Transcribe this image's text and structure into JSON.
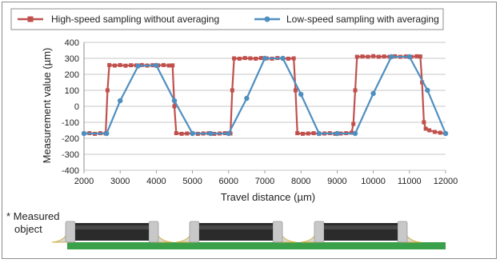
{
  "chart_data": {
    "type": "line",
    "xlabel": "Travel distance (µm)",
    "ylabel": "Measurement value (µm)",
    "xlim": [
      2000,
      12000
    ],
    "ylim": [
      -400,
      400
    ],
    "xticks": [
      2000,
      3000,
      4000,
      5000,
      6000,
      7000,
      8000,
      9000,
      10000,
      11000,
      12000
    ],
    "yticks": [
      -400,
      -300,
      -200,
      -100,
      0,
      100,
      200,
      300,
      400
    ],
    "grid": "horizontal",
    "legend_position": "top",
    "series": [
      {
        "name": "High-speed sampling without averaging",
        "color": "#c0504d",
        "marker": "square",
        "points": [
          [
            2000,
            -170
          ],
          [
            2150,
            -168
          ],
          [
            2300,
            -172
          ],
          [
            2450,
            -168
          ],
          [
            2600,
            -170
          ],
          [
            2650,
            100
          ],
          [
            2700,
            258
          ],
          [
            2850,
            255
          ],
          [
            3000,
            258
          ],
          [
            3150,
            254
          ],
          [
            3300,
            257
          ],
          [
            3450,
            256
          ],
          [
            3600,
            258
          ],
          [
            3750,
            255
          ],
          [
            3900,
            257
          ],
          [
            4050,
            256
          ],
          [
            4200,
            258
          ],
          [
            4350,
            255
          ],
          [
            4450,
            256
          ],
          [
            4500,
            0
          ],
          [
            4550,
            -168
          ],
          [
            4700,
            -172
          ],
          [
            4850,
            -170
          ],
          [
            5000,
            -168
          ],
          [
            5150,
            -172
          ],
          [
            5300,
            -170
          ],
          [
            5450,
            -168
          ],
          [
            5600,
            -172
          ],
          [
            5750,
            -170
          ],
          [
            5900,
            -168
          ],
          [
            6050,
            -170
          ],
          [
            6100,
            100
          ],
          [
            6150,
            300
          ],
          [
            6300,
            298
          ],
          [
            6450,
            302
          ],
          [
            6600,
            300
          ],
          [
            6750,
            298
          ],
          [
            6900,
            302
          ],
          [
            7050,
            300
          ],
          [
            7200,
            298
          ],
          [
            7350,
            302
          ],
          [
            7500,
            300
          ],
          [
            7650,
            298
          ],
          [
            7800,
            300
          ],
          [
            7850,
            100
          ],
          [
            7900,
            -168
          ],
          [
            8050,
            -172
          ],
          [
            8200,
            -170
          ],
          [
            8350,
            -168
          ],
          [
            8500,
            -172
          ],
          [
            8650,
            -170
          ],
          [
            8800,
            -168
          ],
          [
            8950,
            -172
          ],
          [
            9100,
            -170
          ],
          [
            9250,
            -168
          ],
          [
            9400,
            -165
          ],
          [
            9450,
            -110
          ],
          [
            9500,
            100
          ],
          [
            9550,
            310
          ],
          [
            9700,
            312
          ],
          [
            9850,
            310
          ],
          [
            10000,
            314
          ],
          [
            10150,
            310
          ],
          [
            10300,
            312
          ],
          [
            10450,
            310
          ],
          [
            10600,
            313
          ],
          [
            10750,
            310
          ],
          [
            10900,
            312
          ],
          [
            11050,
            310
          ],
          [
            11200,
            313
          ],
          [
            11300,
            312
          ],
          [
            11350,
            150
          ],
          [
            11400,
            -100
          ],
          [
            11450,
            -140
          ],
          [
            11550,
            -150
          ],
          [
            11700,
            -160
          ],
          [
            11850,
            -165
          ],
          [
            12000,
            -170
          ]
        ]
      },
      {
        "name": "Low-speed sampling with averaging",
        "color": "#4f8fc0",
        "marker": "circle",
        "points": [
          [
            2000,
            -170
          ],
          [
            2625,
            -170
          ],
          [
            3000,
            35
          ],
          [
            3500,
            253
          ],
          [
            4000,
            256
          ],
          [
            4500,
            35
          ],
          [
            5000,
            -170
          ],
          [
            5500,
            -170
          ],
          [
            6000,
            -170
          ],
          [
            6500,
            50
          ],
          [
            7000,
            300
          ],
          [
            7500,
            300
          ],
          [
            8000,
            75
          ],
          [
            8500,
            -170
          ],
          [
            9000,
            -170
          ],
          [
            9500,
            -170
          ],
          [
            10000,
            80
          ],
          [
            10500,
            310
          ],
          [
            11000,
            310
          ],
          [
            11500,
            100
          ],
          [
            12000,
            -170
          ]
        ]
      }
    ]
  },
  "note": {
    "line1": "* Measured",
    "line2": "object"
  },
  "colors": {
    "board": "#3aa04a",
    "chip_body": "#2b2b2b",
    "chip_cap": "#c8c8c8",
    "solder": "#d9d9d9"
  }
}
